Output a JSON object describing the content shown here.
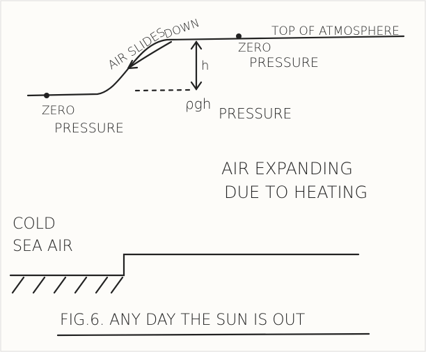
{
  "labels": {
    "air_slides": "AIR SLIDES",
    "down": "DOWN",
    "top": "TOP OF ATMOSPHERE",
    "zero_right": [
      "ZERO",
      "PRESSURE"
    ],
    "h": "h",
    "rho": "ρgh",
    "pressure": "PRESSURE",
    "zero_left": [
      "ZERO",
      "PRESSURE"
    ],
    "expanding": [
      "AIR EXPANDING",
      "DUE TO HEATING"
    ],
    "cold": [
      "COLD",
      "SEA AIR"
    ],
    "caption": "FIG.6. ANY DAY THE SUN IS OUT"
  }
}
